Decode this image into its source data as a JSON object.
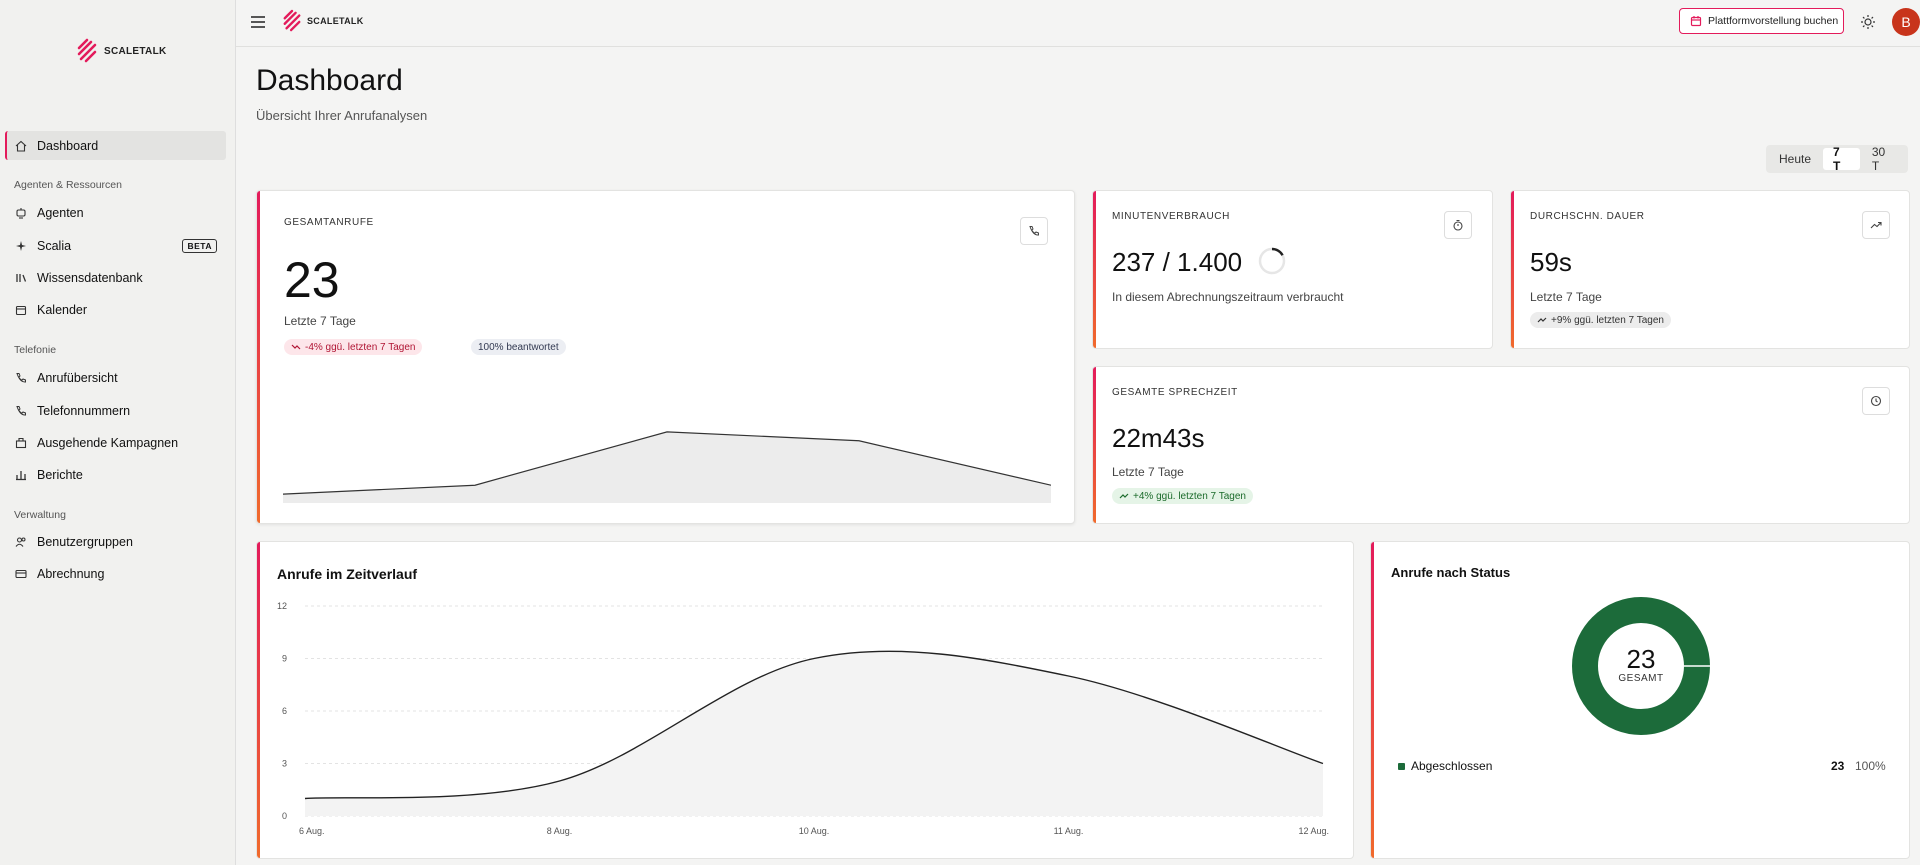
{
  "brand": {
    "name": "SCALETALK"
  },
  "sidebar": {
    "items": [
      {
        "label": "Dashboard"
      },
      {
        "label": "Agenten"
      },
      {
        "label": "Scalia",
        "badge": "BETA"
      },
      {
        "label": "Wissensdatenbank"
      },
      {
        "label": "Kalender"
      },
      {
        "label": "Anrufübersicht"
      },
      {
        "label": "Telefonnummern"
      },
      {
        "label": "Ausgehende Kampagnen"
      },
      {
        "label": "Berichte"
      },
      {
        "label": "Benutzergruppen"
      },
      {
        "label": "Abrechnung"
      }
    ],
    "sections": [
      "Agenten & Ressourcen",
      "Telefonie",
      "Verwaltung"
    ]
  },
  "topbar": {
    "cta_label": "Plattformvorstellung buchen",
    "avatar_initial": "B"
  },
  "page": {
    "title": "Dashboard",
    "subtitle": "Übersicht Ihrer Anrufanalysen"
  },
  "range": {
    "options": [
      "Heute",
      "7 T",
      "30 T"
    ],
    "selected": "7 T"
  },
  "cards": {
    "total_calls": {
      "label": "GESAMTANRUFE",
      "value": "23",
      "period": "Letzte 7 Tage",
      "trend": "-4% ggü. letzten 7 Tagen",
      "answered": "100% beantwortet",
      "sparkline": [
        1,
        2,
        8,
        7,
        2
      ]
    },
    "minutes": {
      "label": "MINUTENVERBRAUCH",
      "value": "237 / 1.400",
      "note": "In diesem Abrechnungszeitraum verbraucht",
      "used_fraction": 0.169
    },
    "avg_duration": {
      "label": "DURCHSCHN. DAUER",
      "value": "59s",
      "period": "Letzte 7 Tage",
      "trend": "+9% ggü. letzten 7 Tagen"
    },
    "talk_time": {
      "label": "GESAMTE SPRECHZEIT",
      "value": "22m43s",
      "period": "Letzte 7 Tage",
      "trend": "+4% ggü. letzten 7 Tagen"
    }
  },
  "colors": {
    "accent": "#e31b5b",
    "accent2": "#f06a2c",
    "donut": "#1c6b3a",
    "avatar": "#c8341b"
  },
  "chart_data": [
    {
      "type": "area",
      "title": "Anrufe im Zeitverlauf",
      "x": [
        "6 Aug.",
        "8 Aug.",
        "10 Aug.",
        "11 Aug.",
        "12 Aug."
      ],
      "series": [
        {
          "values": [
            1,
            2,
            9,
            8,
            3
          ]
        }
      ],
      "yticks": [
        0,
        3,
        6,
        9,
        12
      ],
      "ylim": [
        0,
        12
      ],
      "grid": true
    },
    {
      "type": "pie",
      "title": "Anrufe nach Status",
      "center_value": "23",
      "center_label": "GESAMT",
      "slices": [
        {
          "label": "Abgeschlossen",
          "value": 23,
          "percent": "100%"
        }
      ]
    }
  ]
}
